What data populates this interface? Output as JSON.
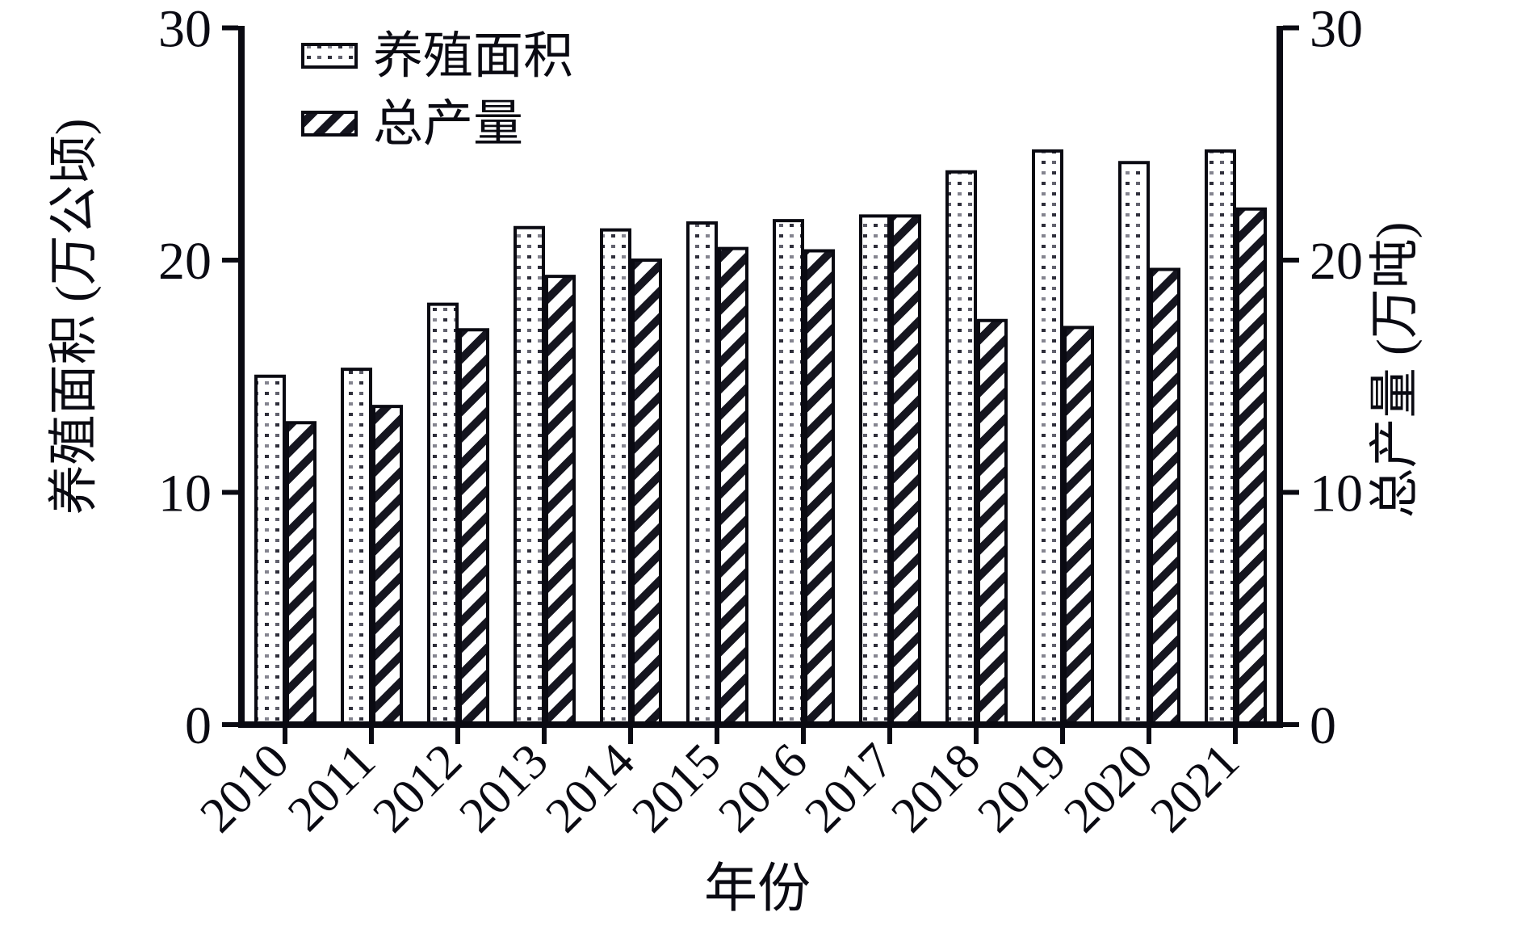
{
  "chart_data": {
    "type": "bar",
    "title": "",
    "xlabel": "年份",
    "ylabel_left": "养殖面积 (万公顷)",
    "ylabel_right": "总产量 (万吨)",
    "categories": [
      "2010",
      "2011",
      "2012",
      "2013",
      "2014",
      "2015",
      "2016",
      "2017",
      "2018",
      "2019",
      "2020",
      "2021"
    ],
    "series": [
      {
        "name": "养殖面积",
        "unit": "万公顷",
        "axis": "left",
        "pattern": "dots",
        "values": [
          15.0,
          15.3,
          18.1,
          21.4,
          21.3,
          21.6,
          21.7,
          21.9,
          23.8,
          24.7,
          24.2,
          24.7
        ]
      },
      {
        "name": "总产量",
        "unit": "万吨",
        "axis": "right",
        "pattern": "diagonal-hatch",
        "values": [
          13.0,
          13.7,
          17.0,
          19.3,
          20.0,
          20.5,
          20.4,
          21.9,
          17.4,
          17.1,
          19.6,
          22.2
        ]
      }
    ],
    "ylim_left": [
      0,
      30
    ],
    "ylim_right": [
      0,
      30
    ],
    "y_ticks_left": [
      "0",
      "10",
      "20",
      "30"
    ],
    "y_ticks_right": [
      "0",
      "10",
      "20",
      "30"
    ],
    "grid": false,
    "legend_position": "top-left-inside",
    "bar_fill": "#ffffff",
    "ink": "#0a0a12"
  }
}
